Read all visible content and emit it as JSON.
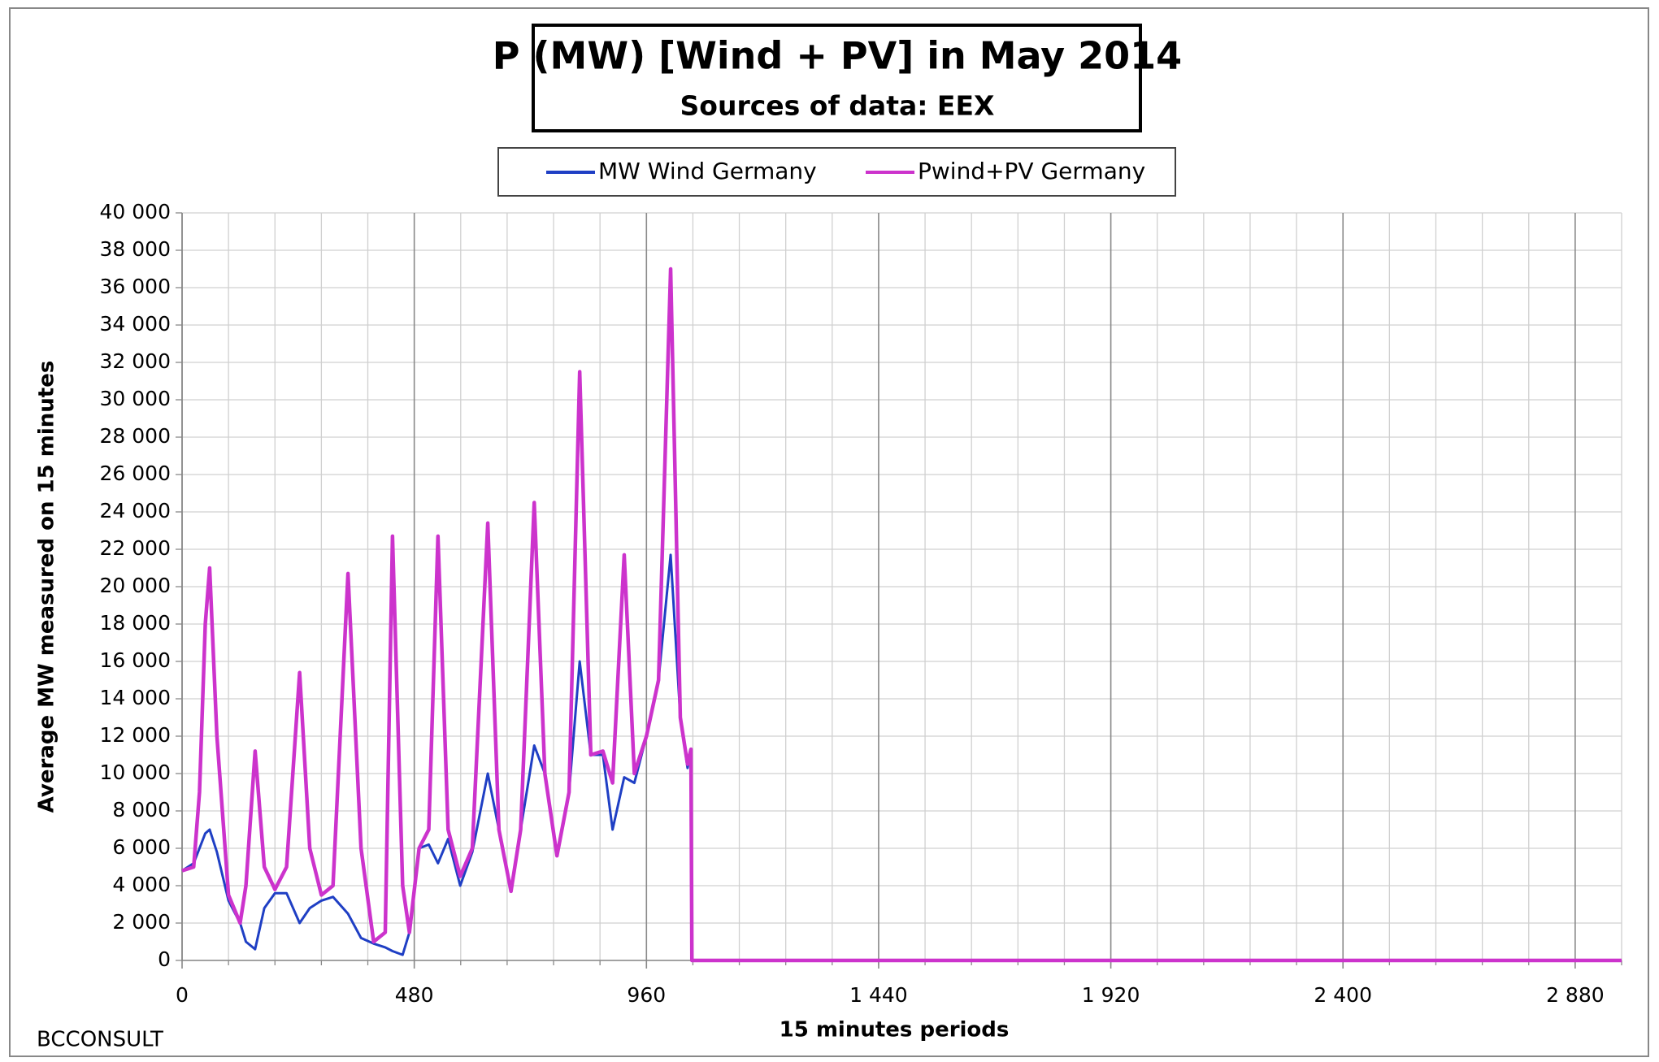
{
  "chart_data": {
    "type": "line",
    "title": "P (MW) [Wind + PV] in May 2014",
    "subtitle": "Sources of data: EEX",
    "x_label": "15 minutes periods",
    "y_label": "Average MW measured on 15 minutes",
    "footer": "BCCONSULT",
    "x": [
      0,
      24,
      36,
      48,
      57,
      72,
      96,
      120,
      132,
      151,
      170,
      192,
      216,
      243,
      264,
      288,
      312,
      343,
      370,
      396,
      420,
      435,
      456,
      470,
      490,
      510,
      529,
      550,
      575,
      600,
      632,
      655,
      680,
      700,
      728,
      750,
      775,
      800,
      822,
      845,
      870,
      890,
      914,
      935,
      960,
      985,
      1010,
      1030,
      1045,
      1052,
      1054,
      2976
    ],
    "series": [
      {
        "name": "MW Wind Germany",
        "color": "#1f3fc4",
        "values": [
          4800,
          5200,
          6000,
          6800,
          7000,
          5800,
          3200,
          2000,
          1000,
          600,
          2800,
          3600,
          3600,
          2000,
          2800,
          3200,
          3400,
          2500,
          1200,
          900,
          700,
          500,
          300,
          1500,
          6000,
          6200,
          5200,
          6500,
          4000,
          5800,
          10000,
          7000,
          3700,
          7000,
          11500,
          10000,
          5600,
          9000,
          16000,
          11000,
          11000,
          7000,
          9800,
          9500,
          12000,
          15000,
          21700,
          13000,
          10300,
          11300,
          0,
          0
        ]
      },
      {
        "name": "Pwind+PV Germany",
        "color": "#cc33cc",
        "values": [
          4800,
          5000,
          9000,
          18000,
          21000,
          12000,
          3500,
          2000,
          4000,
          11200,
          5000,
          3800,
          5000,
          15400,
          6000,
          3500,
          4000,
          20700,
          6000,
          1000,
          1500,
          22700,
          4000,
          1500,
          6000,
          7000,
          22700,
          7000,
          4500,
          6000,
          23400,
          7000,
          3700,
          7000,
          24500,
          10000,
          5600,
          9000,
          31500,
          11000,
          11200,
          9500,
          21700,
          10000,
          12000,
          15000,
          37000,
          13000,
          10500,
          11300,
          0,
          0
        ]
      }
    ],
    "xlim": [
      0,
      2976
    ],
    "xticks": [
      0,
      480,
      960,
      {
        "value": 1440,
        "label": "1 440"
      },
      {
        "value": 1920,
        "label": "1 920"
      },
      {
        "value": 2400,
        "label": "2 400"
      },
      {
        "value": 2880,
        "label": "2 880"
      }
    ],
    "xminorticks": [
      96,
      192,
      288,
      384,
      480,
      576,
      672,
      768,
      864,
      960,
      1056,
      1152,
      1248,
      1344,
      1440,
      1536,
      1632,
      1728,
      1824,
      1920,
      2016,
      2112,
      2208,
      2304,
      2400,
      2496,
      2592,
      2688,
      2784,
      2880,
      2976
    ],
    "ylim": [
      0,
      40000
    ],
    "yticks": [
      0,
      {
        "value": 2000,
        "label": "2 000"
      },
      {
        "value": 4000,
        "label": "4 000"
      },
      {
        "value": 6000,
        "label": "6 000"
      },
      {
        "value": 8000,
        "label": "8 000"
      },
      {
        "value": 10000,
        "label": "10 000"
      },
      {
        "value": 12000,
        "label": "12 000"
      },
      {
        "value": 14000,
        "label": "14 000"
      },
      {
        "value": 16000,
        "label": "16 000"
      },
      {
        "value": 18000,
        "label": "18 000"
      },
      {
        "value": 20000,
        "label": "20 000"
      },
      {
        "value": 22000,
        "label": "22 000"
      },
      {
        "value": 24000,
        "label": "24 000"
      },
      {
        "value": 26000,
        "label": "26 000"
      },
      {
        "value": 28000,
        "label": "28 000"
      },
      {
        "value": 30000,
        "label": "30 000"
      },
      {
        "value": 32000,
        "label": "32 000"
      },
      {
        "value": 34000,
        "label": "34 000"
      },
      {
        "value": 36000,
        "label": "36 000"
      },
      {
        "value": 38000,
        "label": "38 000"
      },
      {
        "value": 40000,
        "label": "40 000"
      }
    ],
    "grid": true
  }
}
